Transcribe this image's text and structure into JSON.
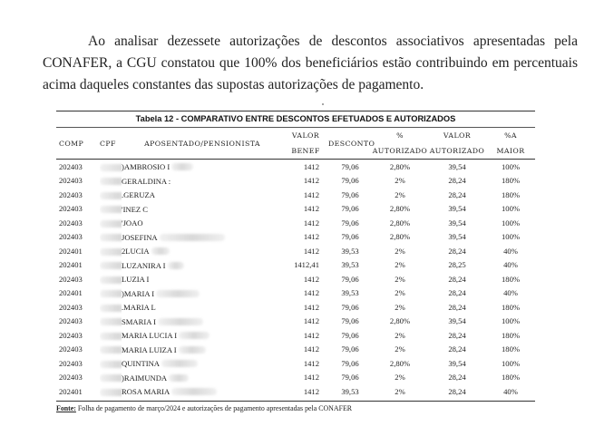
{
  "paragraph": "Ao analisar dezessete autorizações de descontos associativos apresentadas pela CONAFER, a CGU constatou que 100% dos beneficiários estão contribuindo em percentuais acima daqueles constantes das supostas autorizações de pagamento.",
  "table": {
    "title": "Tabela 12 - COMPARATIVO ENTRE DESCONTOS EFETUADOS E AUTORIZADOS",
    "headers": {
      "comp": "COMP",
      "cpf": "CPF",
      "aposentado": "APOSENTADO/PENSIONISTA",
      "valor_benef_1": "VALOR",
      "valor_benef_2": "BENEF",
      "desconto": "DESCONTO",
      "pct_aut_1": "%",
      "pct_aut_2": "AUTORIZADO",
      "valor_aut_1": "VALOR",
      "valor_aut_2": "AUTORIZADO",
      "pct_maior_1": "%A",
      "pct_maior_2": "MAIOR"
    },
    "rows": [
      {
        "comp": "202403",
        "nome_pre": ") ",
        "nome": "AMBROSIO I",
        "valor_benef": "1412",
        "desconto": "79,06",
        "pct_aut": "2,80%",
        "valor_aut": "39,54",
        "pct_maior": "100%"
      },
      {
        "comp": "202403",
        "nome_pre": "",
        "nome": "GERALDINA :",
        "valor_benef": "1412",
        "desconto": "79,06",
        "pct_aut": "2%",
        "valor_aut": "28,24",
        "pct_maior": "180%"
      },
      {
        "comp": "202403",
        "nome_pre": ". ",
        "nome": "GERUZA",
        "valor_benef": "1412",
        "desconto": "79,06",
        "pct_aut": "2%",
        "valor_aut": "28,24",
        "pct_maior": "180%"
      },
      {
        "comp": "202403",
        "nome_pre": "' ",
        "nome": "INEZ C",
        "valor_benef": "1412",
        "desconto": "79,06",
        "pct_aut": "2,80%",
        "valor_aut": "39,54",
        "pct_maior": "100%"
      },
      {
        "comp": "202403",
        "nome_pre": "' ",
        "nome": "JOAO",
        "valor_benef": "1412",
        "desconto": "79,06",
        "pct_aut": "2,80%",
        "valor_aut": "39,54",
        "pct_maior": "100%"
      },
      {
        "comp": "202403",
        "nome_pre": "",
        "nome": "JOSEFINA",
        "valor_benef": "1412",
        "desconto": "79,06",
        "pct_aut": "2,80%",
        "valor_aut": "39,54",
        "pct_maior": "100%"
      },
      {
        "comp": "202401",
        "nome_pre": "2 ",
        "nome": "LUCIA",
        "valor_benef": "1412",
        "desconto": "39,53",
        "pct_aut": "2%",
        "valor_aut": "28,24",
        "pct_maior": "40%"
      },
      {
        "comp": "202401",
        "nome_pre": "",
        "nome": "LUZANIRA I",
        "valor_benef": "1412,41",
        "desconto": "39,53",
        "pct_aut": "2%",
        "valor_aut": "28,25",
        "pct_maior": "40%"
      },
      {
        "comp": "202403",
        "nome_pre": "",
        "nome": "LUZIA I",
        "valor_benef": "1412",
        "desconto": "79,06",
        "pct_aut": "2%",
        "valor_aut": "28,24",
        "pct_maior": "180%"
      },
      {
        "comp": "202401",
        "nome_pre": ") ",
        "nome": "MARIA I",
        "valor_benef": "1412",
        "desconto": "39,53",
        "pct_aut": "2%",
        "valor_aut": "28,24",
        "pct_maior": "40%"
      },
      {
        "comp": "202403",
        "nome_pre": ". ",
        "nome": "MARIA L",
        "valor_benef": "1412",
        "desconto": "79,06",
        "pct_aut": "2%",
        "valor_aut": "28,24",
        "pct_maior": "180%"
      },
      {
        "comp": "202403",
        "nome_pre": "S ",
        "nome": "MARIA I",
        "valor_benef": "1412",
        "desconto": "79,06",
        "pct_aut": "2,80%",
        "valor_aut": "39,54",
        "pct_maior": "100%"
      },
      {
        "comp": "202403",
        "nome_pre": "",
        "nome": "MARIA LUCIA I",
        "valor_benef": "1412",
        "desconto": "79,06",
        "pct_aut": "2%",
        "valor_aut": "28,24",
        "pct_maior": "180%"
      },
      {
        "comp": "202403",
        "nome_pre": "",
        "nome": "MARIA LUIZA I",
        "valor_benef": "1412",
        "desconto": "79,06",
        "pct_aut": "2%",
        "valor_aut": "28,24",
        "pct_maior": "180%"
      },
      {
        "comp": "202403",
        "nome_pre": "",
        "nome": "QUINTINA",
        "valor_benef": "1412",
        "desconto": "79,06",
        "pct_aut": "2,80%",
        "valor_aut": "39,54",
        "pct_maior": "100%"
      },
      {
        "comp": "202403",
        "nome_pre": ") ",
        "nome": "RAIMUNDA",
        "valor_benef": "1412",
        "desconto": "79,06",
        "pct_aut": "2%",
        "valor_aut": "28,24",
        "pct_maior": "180%"
      },
      {
        "comp": "202401",
        "nome_pre": "",
        "nome": "ROSA MARIA",
        "valor_benef": "1412",
        "desconto": "39,53",
        "pct_aut": "2%",
        "valor_aut": "28,24",
        "pct_maior": "40%"
      }
    ],
    "fonte_label": "Fonte:",
    "fonte_text": " Folha de pagamento de março/2024 e autorizações de pagamento apresentadas pela CONAFER"
  }
}
